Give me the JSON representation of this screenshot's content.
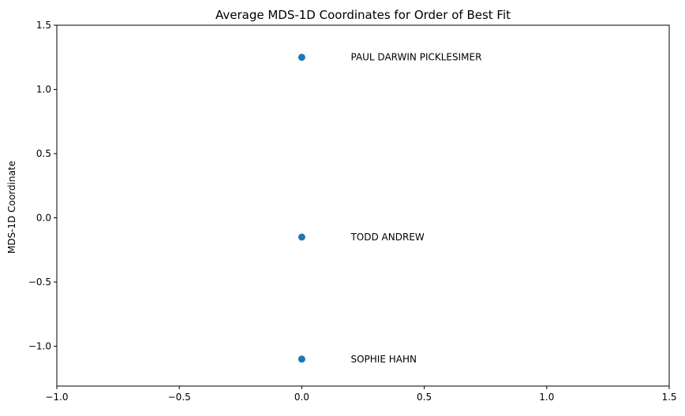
{
  "chart_data": {
    "type": "scatter",
    "title": "Average MDS-1D Coordinates for Order of Best Fit",
    "xlabel": "",
    "ylabel": "MDS-1D Coordinate",
    "xlim": [
      -1.0,
      1.5
    ],
    "ylim": [
      -1.31,
      1.5
    ],
    "x_ticks": [
      -1.0,
      -0.5,
      0.0,
      0.5,
      1.0,
      1.5
    ],
    "x_tick_labels": [
      "−1.0",
      "−0.5",
      "0.0",
      "0.5",
      "1.0",
      "1.5"
    ],
    "y_ticks": [
      1.5,
      1.0,
      0.5,
      0.0,
      -0.5,
      -1.0
    ],
    "y_tick_labels": [
      "1.5",
      "1.0",
      "0.5",
      "0.0",
      "−0.5",
      "−1.0"
    ],
    "grid": false,
    "points": [
      {
        "label": "PAUL DARWIN PICKLESIMER",
        "x": 0.0,
        "y": 1.25,
        "label_x": 0.2,
        "label_y": 1.25
      },
      {
        "label": "TODD ANDREW",
        "x": 0.0,
        "y": -0.15,
        "label_x": 0.2,
        "label_y": -0.15
      },
      {
        "label": "SOPHIE HAHN",
        "x": 0.0,
        "y": -1.1,
        "label_x": 0.2,
        "label_y": -1.1
      }
    ],
    "marker_color": "#1f77b4"
  }
}
